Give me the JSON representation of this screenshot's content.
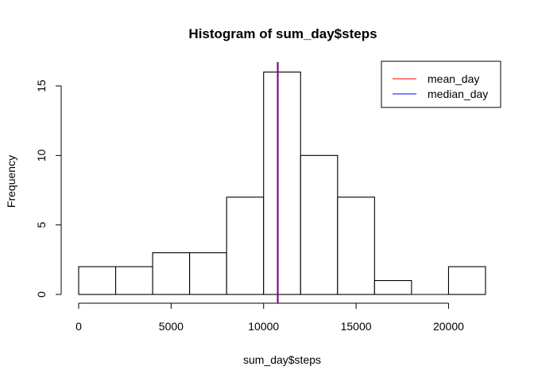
{
  "chart_data": {
    "type": "bar",
    "title": "Histogram of sum_day$steps",
    "xlabel": "sum_day$steps",
    "ylabel": "Frequency",
    "bins": [
      {
        "from": 0,
        "to": 2000,
        "count": 2
      },
      {
        "from": 2000,
        "to": 4000,
        "count": 2
      },
      {
        "from": 4000,
        "to": 6000,
        "count": 3
      },
      {
        "from": 6000,
        "to": 8000,
        "count": 3
      },
      {
        "from": 8000,
        "to": 10000,
        "count": 7
      },
      {
        "from": 10000,
        "to": 12000,
        "count": 16
      },
      {
        "from": 12000,
        "to": 14000,
        "count": 10
      },
      {
        "from": 14000,
        "to": 16000,
        "count": 7
      },
      {
        "from": 16000,
        "to": 18000,
        "count": 1
      },
      {
        "from": 18000,
        "to": 20000,
        "count": 0
      },
      {
        "from": 20000,
        "to": 22000,
        "count": 2
      }
    ],
    "xticks": [
      0,
      5000,
      10000,
      15000,
      20000
    ],
    "yticks": [
      0,
      5,
      10,
      15
    ],
    "xlim": [
      0,
      22000
    ],
    "ylim": [
      0,
      16
    ],
    "mean_day": 10766,
    "median_day": 10765,
    "mean_color": "#ff0000",
    "median_color": "#0000ff",
    "overlap_line_color": "#800080",
    "legend": {
      "placement": "top-right",
      "entries": [
        {
          "label": "mean_day",
          "color": "#ff0000"
        },
        {
          "label": "median_day",
          "color": "#0000ff"
        }
      ]
    }
  }
}
